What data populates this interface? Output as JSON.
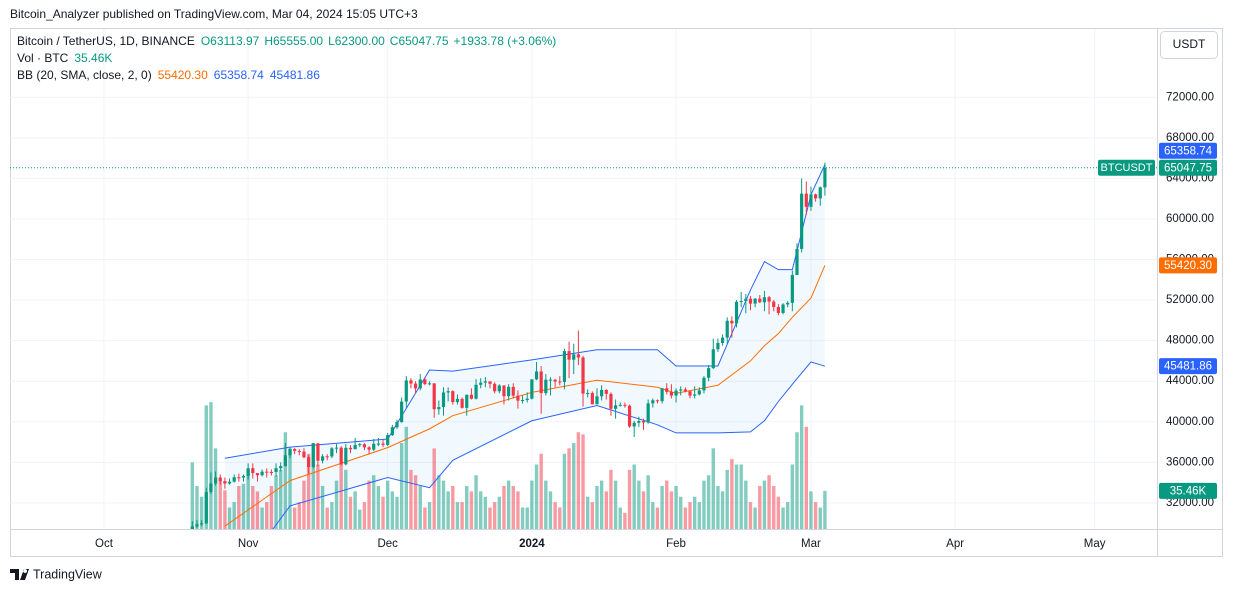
{
  "header": {
    "published": "Bitcoin_Analyzer published on TradingView.com, Mar 04, 2024 15:05 UTC+3",
    "brand": "TradingView"
  },
  "chart_data": {
    "type": "candlestick",
    "symbol": "Bitcoin / TetherUS, 1D, BINANCE",
    "ohlc_labels": [
      "O63113.97",
      "H65555.00",
      "L62300.00",
      "C65047.75"
    ],
    "change_label": "+1933.78 (+3.06%)",
    "currency": "USDT",
    "ticker": "BTCUSDT",
    "up_color": "#089981",
    "down_color": "#f23645",
    "open": [
      28720,
      29680,
      29900,
      29990,
      33080,
      33920,
      34500,
      34150,
      33910,
      34090,
      34530,
      34500,
      34660,
      35420,
      34940,
      34730,
      35080,
      35050,
      35040,
      35420,
      35630,
      36700,
      37310,
      37130,
      37060,
      36500,
      35540,
      37870,
      36160,
      36590,
      36580,
      37380,
      37450,
      35800,
      37430,
      37290,
      37720,
      37790,
      37480,
      37250,
      37830,
      37850,
      37720,
      38690,
      39460,
      39970,
      41990,
      44080,
      43770,
      43290,
      44170,
      43720,
      43790,
      41240,
      41450,
      42890,
      43020,
      41940,
      42260,
      41370,
      42660,
      42270,
      43650,
      43860,
      43990,
      43740,
      43010,
      43580,
      42520,
      43440,
      42580,
      42080,
      42150,
      42280,
      44180,
      44960,
      42830,
      44150,
      44160,
      43970,
      43930,
      46970,
      46120,
      46650,
      46340,
      42780,
      42840,
      41730,
      42510,
      43140,
      42750,
      41280,
      41620,
      41670,
      41580,
      39540,
      39900,
      40080,
      39930,
      41820,
      42120,
      42030,
      43300,
      42950,
      42580,
      43080,
      43190,
      43000,
      42580,
      42700,
      43090,
      44340,
      45290,
      47150,
      47770,
      48300,
      49960,
      49700,
      51830,
      51910,
      52140,
      51650,
      52140,
      51780,
      52280,
      51850,
      51320,
      50730,
      51570,
      51730,
      54480,
      57040,
      62500,
      61200,
      62430,
      62030,
      63113.97
    ],
    "high": [
      30200,
      30300,
      30300,
      33500,
      35000,
      35100,
      34800,
      34500,
      34400,
      34800,
      34900,
      34800,
      35900,
      35900,
      34950,
      35300,
      35400,
      35300,
      35900,
      36000,
      37900,
      37500,
      37400,
      37300,
      37400,
      36700,
      37900,
      37900,
      36800,
      36800,
      37500,
      37800,
      37600,
      37800,
      37700,
      38400,
      37900,
      37900,
      37600,
      38300,
      38400,
      38200,
      38900,
      39700,
      40200,
      42400,
      44500,
      44300,
      44000,
      44700,
      44400,
      44000,
      43800,
      42100,
      43400,
      43400,
      43100,
      42700,
      42400,
      42700,
      43300,
      44200,
      44300,
      44400,
      43900,
      43900,
      43700,
      43600,
      43700,
      43800,
      43100,
      42600,
      42900,
      44200,
      45900,
      45500,
      44700,
      44400,
      44200,
      44500,
      47200,
      47900,
      47700,
      49000,
      46500,
      43200,
      43000,
      43300,
      43600,
      43200,
      42900,
      42200,
      41900,
      41900,
      41700,
      40100,
      40500,
      40300,
      42200,
      42300,
      42200,
      43300,
      43800,
      43700,
      43300,
      43500,
      43400,
      43100,
      43500,
      43400,
      44500,
      45600,
      48200,
      48200,
      48600,
      50300,
      50400,
      52000,
      52800,
      52600,
      52400,
      52200,
      52500,
      52900,
      52400,
      52000,
      51600,
      51700,
      51900,
      54900,
      57600,
      64000,
      63700,
      63200,
      62500,
      63200,
      65555
    ],
    "low": [
      28600,
      29500,
      29700,
      29900,
      32900,
      33700,
      33800,
      33400,
      33800,
      34000,
      34100,
      34100,
      34300,
      34400,
      34100,
      34600,
      34500,
      34700,
      34600,
      35100,
      35600,
      36400,
      36800,
      36700,
      36400,
      34900,
      35400,
      35600,
      35900,
      36200,
      36400,
      36900,
      35700,
      35700,
      36900,
      37300,
      37500,
      37200,
      36800,
      37100,
      37600,
      37500,
      37600,
      38600,
      39300,
      39900,
      41400,
      43300,
      42800,
      43100,
      43600,
      43600,
      40400,
      40700,
      40600,
      42000,
      41700,
      41700,
      41300,
      40600,
      42200,
      42200,
      43300,
      43400,
      43300,
      42800,
      42800,
      41700,
      42100,
      42300,
      41300,
      41800,
      41900,
      42200,
      44100,
      40800,
      42600,
      42600,
      43400,
      43600,
      43200,
      44300,
      44700,
      45600,
      41500,
      42400,
      41700,
      41700,
      42100,
      42200,
      40600,
      40300,
      41500,
      41400,
      39400,
      38500,
      39500,
      39200,
      39800,
      41400,
      41800,
      41800,
      42700,
      42300,
      41900,
      42600,
      42900,
      42300,
      42300,
      42600,
      42800,
      44000,
      45200,
      46900,
      47500,
      47700,
      48300,
      49300,
      51300,
      50700,
      51000,
      51300,
      51700,
      50900,
      50600,
      50900,
      50500,
      50600,
      51300,
      50900,
      54500,
      56700,
      60400,
      60800,
      61700,
      61300,
      62300
    ],
    "close": [
      29680,
      29900,
      29990,
      33080,
      33920,
      34500,
      34150,
      33910,
      34090,
      34530,
      34500,
      34660,
      35420,
      34940,
      34730,
      35080,
      35050,
      35040,
      35420,
      35630,
      36700,
      37310,
      37130,
      37060,
      36500,
      35540,
      37870,
      36160,
      36590,
      36580,
      37380,
      37450,
      35800,
      37430,
      37290,
      37720,
      37790,
      37480,
      37250,
      37830,
      37850,
      37720,
      38690,
      39460,
      39970,
      41990,
      44080,
      43770,
      43290,
      44170,
      43720,
      43790,
      41240,
      41450,
      42890,
      43020,
      41940,
      42260,
      41370,
      42660,
      42270,
      43650,
      43860,
      43990,
      43740,
      43010,
      43580,
      42520,
      43440,
      42580,
      42080,
      42150,
      42280,
      44180,
      44960,
      42830,
      44150,
      44160,
      43970,
      43930,
      46970,
      46120,
      46650,
      46340,
      42780,
      42840,
      41730,
      42510,
      43140,
      42750,
      41280,
      41620,
      41670,
      41580,
      39540,
      39900,
      40080,
      39930,
      41820,
      42120,
      42030,
      43300,
      42950,
      42580,
      43080,
      43190,
      43000,
      42580,
      42700,
      43090,
      44340,
      45290,
      47150,
      47770,
      48300,
      49960,
      49700,
      51830,
      51910,
      52140,
      51650,
      52140,
      51780,
      52280,
      51850,
      51320,
      50730,
      51570,
      51730,
      54480,
      57040,
      62500,
      61200,
      62430,
      62030,
      63113.97,
      65047.75
    ],
    "xlim": [
      -39.2,
      207.4
    ],
    "xticks": [
      {
        "value": -19,
        "label": "Oct"
      },
      {
        "value": 12,
        "label": "Nov"
      },
      {
        "value": 42,
        "label": "Dec"
      },
      {
        "value": 73,
        "label": "2024"
      },
      {
        "value": 104,
        "label": "Feb"
      },
      {
        "value": 133,
        "label": "Mar"
      },
      {
        "value": 164,
        "label": "Apr"
      },
      {
        "value": 194,
        "label": "May"
      }
    ],
    "ylim": [
      29426,
      78733
    ],
    "yticks": [
      {
        "value": 32000,
        "label": "32000.00"
      },
      {
        "value": 36000,
        "label": "36000.00"
      },
      {
        "value": 40000,
        "label": "40000.00"
      },
      {
        "value": 44000,
        "label": "44000.00"
      },
      {
        "value": 48000,
        "label": "48000.00"
      },
      {
        "value": 52000,
        "label": "52000.00"
      },
      {
        "value": 56000,
        "label": "56000.00"
      },
      {
        "value": 60000,
        "label": "60000.00"
      },
      {
        "value": 64000,
        "label": "64000.00"
      },
      {
        "value": 68000,
        "label": "68000.00"
      },
      {
        "value": 72000,
        "label": "72000.00"
      }
    ],
    "grid": true,
    "volume": {
      "label": "Vol · BTC",
      "ylim": [
        0,
        465
      ],
      "last_value_label": "35.46K",
      "values": [
        62,
        40,
        30,
        115,
        118,
        75,
        45,
        36,
        20,
        25,
        40,
        42,
        55,
        40,
        35,
        20,
        25,
        40,
        50,
        55,
        90,
        75,
        20,
        25,
        45,
        70,
        80,
        60,
        40,
        20,
        25,
        45,
        60,
        55,
        30,
        35,
        18,
        25,
        45,
        50,
        40,
        30,
        45,
        35,
        30,
        80,
        95,
        55,
        50,
        40,
        20,
        25,
        75,
        50,
        45,
        35,
        40,
        25,
        25,
        40,
        35,
        50,
        35,
        30,
        20,
        25,
        30,
        40,
        45,
        40,
        35,
        20,
        20,
        45,
        60,
        70,
        45,
        35,
        25,
        20,
        70,
        75,
        80,
        90,
        88,
        30,
        25,
        40,
        45,
        35,
        55,
        45,
        20,
        15,
        55,
        60,
        45,
        35,
        50,
        25,
        20,
        40,
        45,
        35,
        40,
        30,
        20,
        25,
        30,
        25,
        45,
        50,
        75,
        40,
        35,
        55,
        65,
        60,
        60,
        45,
        25,
        20,
        40,
        45,
        50,
        40,
        30,
        20,
        25,
        60,
        90,
        115,
        95,
        35,
        25,
        20,
        35.46
      ]
    },
    "bollinger": {
      "label": "BB (20, SMA, close, 2, 0)",
      "x": [
        7,
        21,
        42,
        51,
        56,
        73,
        87,
        100,
        104,
        113,
        120,
        123,
        126,
        129,
        133,
        136
      ],
      "series": [
        {
          "color": "#ff6d00",
          "values": [
            29700,
            34200,
            37450,
            39300,
            40600,
            42900,
            44100,
            43400,
            42800,
            43600,
            46000,
            47500,
            48700,
            50300,
            52200,
            55420.3
          ],
          "last_value_label": "55420.30"
        },
        {
          "color": "#2962ff",
          "values": [
            36400,
            37500,
            38300,
            45100,
            45000,
            46100,
            47100,
            47100,
            45500,
            45500,
            53000,
            55800,
            55000,
            55000,
            62400,
            65358.74
          ],
          "last_value_label": "65358.74"
        },
        {
          "color": "#2962ff",
          "values": [
            23000,
            31700,
            34500,
            33500,
            36200,
            40100,
            41600,
            39700,
            38900,
            38900,
            39000,
            40100,
            42000,
            43700,
            45900,
            45481.86
          ],
          "last_value_label": "45481.86"
        }
      ]
    }
  }
}
